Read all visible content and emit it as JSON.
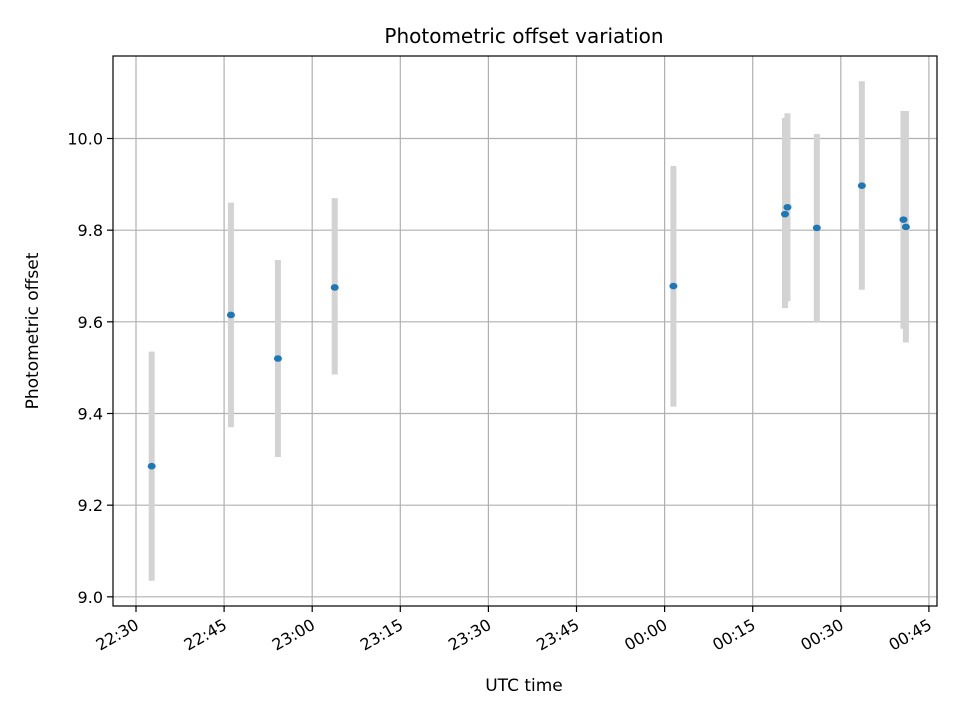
{
  "chart_data": {
    "type": "scatter",
    "title": "Photometric offset variation",
    "xlabel": "UTC time",
    "ylabel": "Photometric offset",
    "x_ticks": [
      "22:30",
      "22:45",
      "23:00",
      "23:15",
      "23:30",
      "23:45",
      "00:00",
      "00:15",
      "00:30",
      "00:45"
    ],
    "y_ticks": [
      "9.0",
      "9.2",
      "9.4",
      "9.6",
      "9.8",
      "10.0"
    ],
    "ylim": [
      8.98,
      10.18
    ],
    "grid": true,
    "colors": {
      "point": "#1f77b4",
      "errorbar": "#d3d3d3",
      "grid": "#b0b0b0"
    },
    "points": [
      {
        "time": "22:32:40",
        "value": 9.285,
        "lower": 9.035,
        "upper": 9.535
      },
      {
        "time": "22:46:10",
        "value": 9.615,
        "lower": 9.37,
        "upper": 9.86
      },
      {
        "time": "22:54:10",
        "value": 9.52,
        "lower": 9.305,
        "upper": 9.735
      },
      {
        "time": "23:03:50",
        "value": 9.675,
        "lower": 9.485,
        "upper": 9.87
      },
      {
        "time": "00:01:30",
        "value": 9.678,
        "lower": 9.415,
        "upper": 9.94
      },
      {
        "time": "00:20:30",
        "value": 9.835,
        "lower": 9.63,
        "upper": 10.045
      },
      {
        "time": "00:20:55",
        "value": 9.85,
        "lower": 9.645,
        "upper": 10.055
      },
      {
        "time": "00:25:55",
        "value": 9.805,
        "lower": 9.6,
        "upper": 10.01
      },
      {
        "time": "00:33:35",
        "value": 9.897,
        "lower": 9.67,
        "upper": 10.125
      },
      {
        "time": "00:40:40",
        "value": 9.823,
        "lower": 9.585,
        "upper": 10.06
      },
      {
        "time": "00:41:05",
        "value": 9.807,
        "lower": 9.555,
        "upper": 10.06
      }
    ]
  }
}
